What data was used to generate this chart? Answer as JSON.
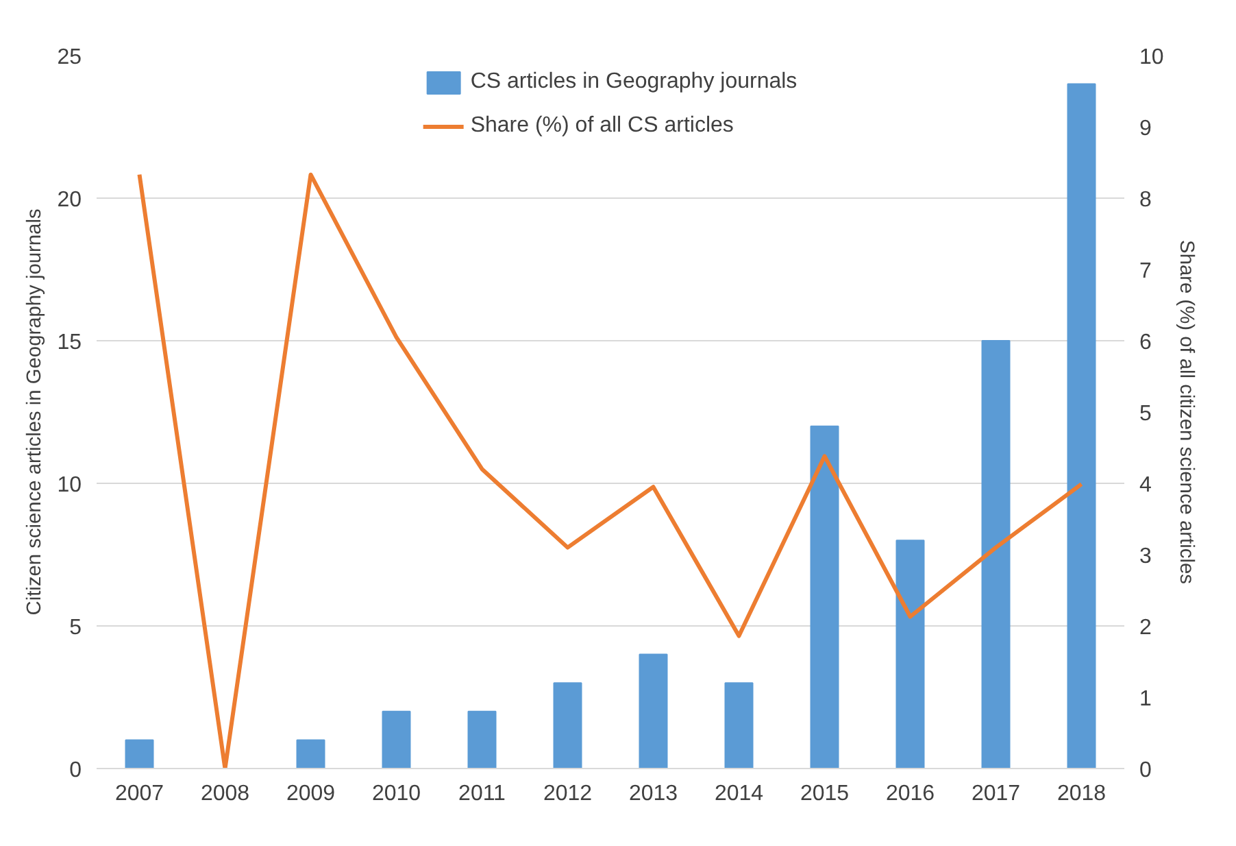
{
  "chart_data": {
    "type": "bar",
    "categories": [
      "2007",
      "2008",
      "2009",
      "2010",
      "2011",
      "2012",
      "2013",
      "2014",
      "2015",
      "2016",
      "2017",
      "2018"
    ],
    "series": [
      {
        "name": "CS articles in Geography journals",
        "color": "#5b9bd5",
        "values": [
          1,
          0,
          1,
          2,
          2,
          3,
          4,
          3,
          12,
          8,
          15,
          24
        ]
      },
      {
        "name": "Share (%) of all CS articles",
        "type": "line",
        "axis": "y2",
        "color": "#ed7d31",
        "values": [
          8.33,
          0,
          8.33,
          6.05,
          4.2,
          3.1,
          3.95,
          1.86,
          4.38,
          2.13,
          3.1,
          3.99
        ]
      }
    ],
    "ylabel": "Citizen science articles in Geography journals",
    "y2label": "Share (%) of all citizen science articles",
    "ylim": [
      0,
      25
    ],
    "yticks": [
      0,
      5,
      10,
      15,
      20,
      25
    ],
    "y2lim": [
      0,
      10
    ],
    "y2ticks": [
      0,
      1,
      2,
      3,
      4,
      5,
      6,
      7,
      8,
      9,
      10
    ],
    "grid": "y",
    "legend": "top",
    "marker": "none",
    "line_style": "solid"
  }
}
